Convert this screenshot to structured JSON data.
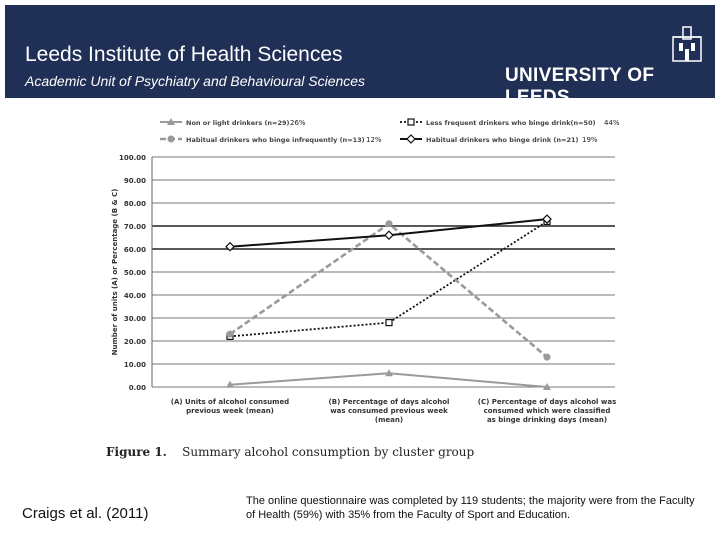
{
  "header": {
    "title": "Leeds Institute of Health Sciences",
    "subtitle": "Academic Unit of Psychiatry and Behavioural Sciences",
    "university": "UNIVERSITY OF LEEDS"
  },
  "chart_data": {
    "type": "line",
    "ylabel": "Number of units (A)   or  Percentage (B & C)",
    "ylim": [
      0,
      100
    ],
    "yticks": [
      "0.00",
      "10.00",
      "20.00",
      "30.00",
      "40.00",
      "50.00",
      "60.00",
      "70.00",
      "80.00",
      "90.00",
      "100.00"
    ],
    "categories": [
      [
        "(A) Units of alcohol consumed",
        "previous week (mean)"
      ],
      [
        "(B) Percentage of days alcohol",
        "was consumed previous week",
        "(mean)"
      ],
      [
        "(C) Percentage of days alcohol was",
        "consumed which were classified",
        "as binge drinking days (mean)"
      ]
    ],
    "series": [
      {
        "name": "Non or light drinkers (n=29)",
        "share": "26%",
        "color": "#9a9a9a",
        "style": "solid",
        "marker": "triangle",
        "values": [
          1,
          6,
          0
        ]
      },
      {
        "name": "Less frequent drinkers who binge drink(n=50)",
        "share": "44%",
        "color": "#111111",
        "style": "dotted",
        "marker": "square",
        "values": [
          22,
          28,
          72
        ]
      },
      {
        "name": "Habitual drinkers who binge infrequently (n=13)",
        "share": "12%",
        "color": "#9a9a9a",
        "style": "dashed",
        "marker": "circle",
        "values": [
          23,
          71,
          13
        ]
      },
      {
        "name": "Habitual drinkers who binge drink (n=21)",
        "share": "19%",
        "color": "#111111",
        "style": "solid",
        "marker": "diamond",
        "values": [
          61,
          66,
          73
        ]
      }
    ],
    "figure_label": "Figure 1.",
    "figure_caption": "Summary alcohol consumption by cluster group",
    "grid": true,
    "legend_position": "top"
  },
  "footer": {
    "citation": "Craigs et al. (2011)",
    "note": "The online questionnaire was completed by 119 students; the majority were from the Faculty of Health (59%) with 35% from the Faculty of Sport and Education."
  }
}
